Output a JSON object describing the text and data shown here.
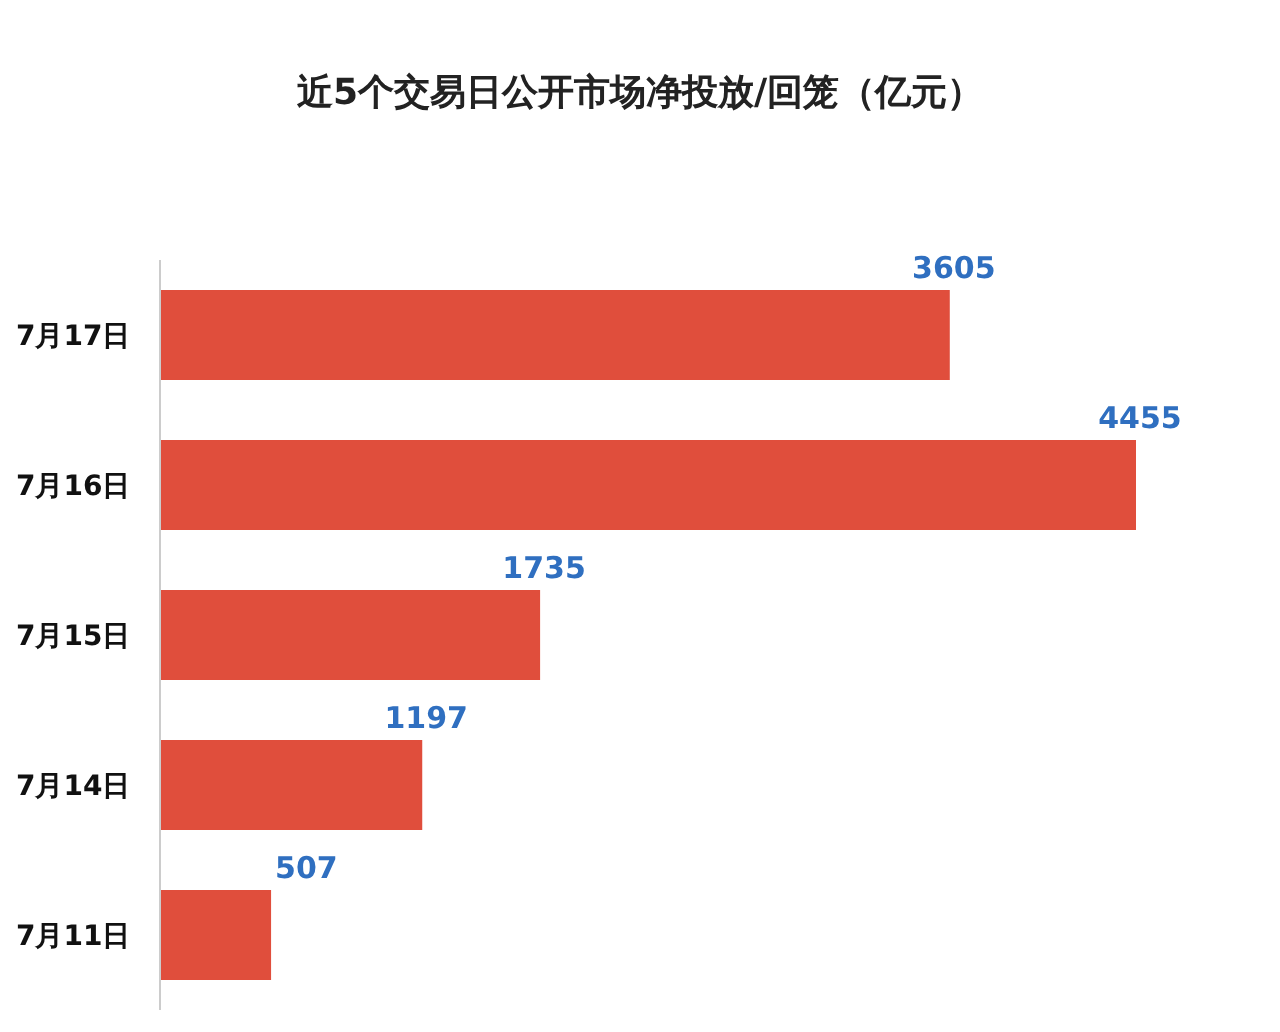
{
  "chart_data": {
    "type": "bar",
    "orientation": "horizontal",
    "title": "近5个交易日公开市场净投放/回笼（亿元）",
    "categories": [
      "7月17日",
      "7月16日",
      "7月15日",
      "7月14日",
      "7月11日"
    ],
    "values": [
      3605,
      4455,
      1735,
      1197,
      507
    ],
    "color": "#e04e3c",
    "data_labels": true
  }
}
